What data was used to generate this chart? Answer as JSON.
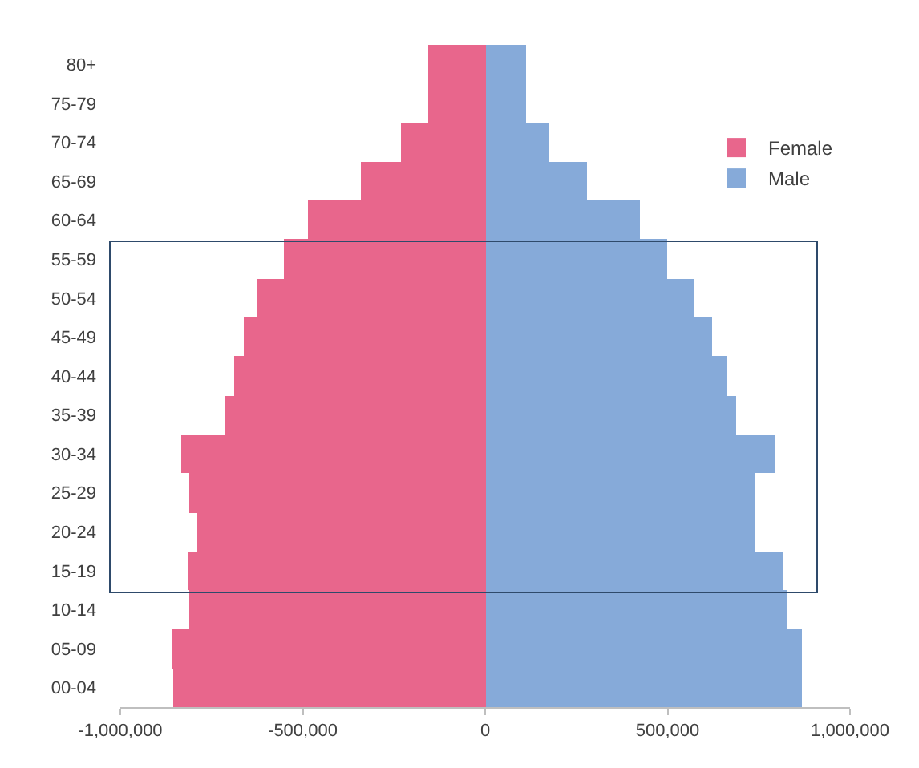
{
  "chart_data": {
    "type": "bar",
    "orientation": "horizontal",
    "categories": [
      "80+",
      "75-79",
      "70-74",
      "65-69",
      "60-64",
      "55-59",
      "50-54",
      "45-49",
      "40-44",
      "35-39",
      "30-34",
      "25-29",
      "20-24",
      "15-19",
      "10-14",
      "05-09",
      "00-04"
    ],
    "series": [
      {
        "name": "Female",
        "color": "#e8668c",
        "values": [
          -155000,
          -155000,
          -230000,
          -340000,
          -485000,
          -550000,
          -625000,
          -660000,
          -690000,
          -715000,
          -835000,
          -810000,
          -790000,
          -815000,
          -810000,
          -860000,
          -855000
        ]
      },
      {
        "name": "Male",
        "color": "#86aad9",
        "values": [
          110000,
          110000,
          175000,
          280000,
          425000,
          500000,
          575000,
          620000,
          660000,
          690000,
          795000,
          740000,
          740000,
          815000,
          830000,
          870000,
          870000
        ]
      }
    ],
    "xlim": [
      -1000000,
      1000000
    ],
    "xticks": [
      {
        "value": -1000000,
        "label": "-1,000,000"
      },
      {
        "value": -500000,
        "label": "-500,000"
      },
      0,
      {
        "value": 500000,
        "label": "500,000"
      },
      {
        "value": 1000000,
        "label": "1,000,000"
      }
    ],
    "stacked": true,
    "grid": false,
    "legend": "top right"
  }
}
